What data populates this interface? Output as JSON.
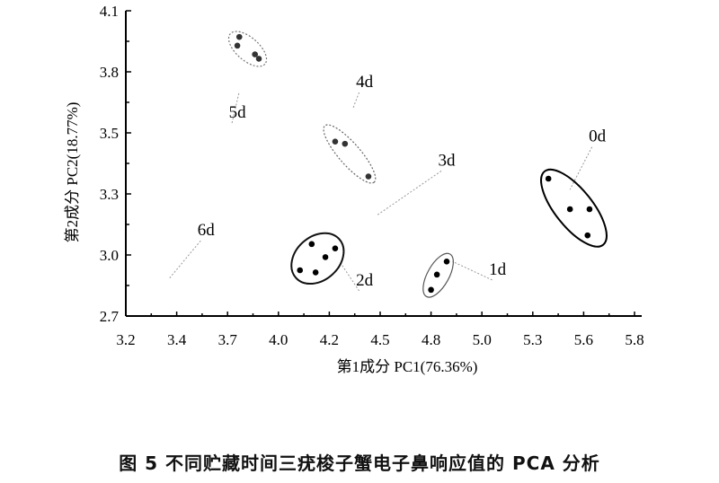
{
  "chart_data": {
    "type": "scatter",
    "xlabel": "第1成分  PC1(76.36%)",
    "ylabel": "第2成分  PC2(18.77%)",
    "xlim": [
      3.2,
      5.8
    ],
    "ylim": [
      2.7,
      4.1
    ],
    "xticks": [
      "3.2",
      "3.4",
      "3.7",
      "4.0",
      "4.2",
      "4.5",
      "4.8",
      "5.0",
      "5.3",
      "5.6",
      "5.8"
    ],
    "yticks": [
      "2.7",
      "3.0",
      "3.3",
      "3.5",
      "3.8",
      "4.1"
    ],
    "grid": false,
    "groups": [
      {
        "name": "0d",
        "color": "#000000",
        "style": "solid",
        "points": [
          [
            5.36,
            3.33
          ],
          [
            5.47,
            3.19
          ],
          [
            5.57,
            3.19
          ],
          [
            5.56,
            3.07
          ]
        ],
        "label_at": [
          5.61,
          3.5
        ],
        "leader_to": [
          5.47,
          3.28
        ]
      },
      {
        "name": "1d",
        "color": "#555555",
        "style": "thin",
        "points": [
          [
            4.84,
            2.95
          ],
          [
            4.79,
            2.89
          ],
          [
            4.76,
            2.82
          ]
        ],
        "label_at": [
          5.1,
          2.89
        ],
        "leader_to": [
          4.87,
          2.95
        ]
      },
      {
        "name": "2d",
        "color": "#111111",
        "style": "solid",
        "points": [
          [
            4.15,
            3.03
          ],
          [
            4.27,
            3.01
          ],
          [
            4.22,
            2.97
          ],
          [
            4.09,
            2.91
          ],
          [
            4.17,
            2.9
          ]
        ],
        "label_at": [
          4.42,
          2.84
        ],
        "leader_to": [
          4.3,
          2.94
        ]
      },
      {
        "name": "3d",
        "color": "#aaaaaa",
        "style": "dotted",
        "points": [],
        "label_at": [
          4.84,
          3.39
        ],
        "leader_to": [
          4.48,
          3.16
        ]
      },
      {
        "name": "4d",
        "color": "#666666",
        "style": "dotted",
        "points": [
          [
            4.27,
            3.5
          ],
          [
            4.32,
            3.49
          ],
          [
            4.44,
            3.34
          ]
        ],
        "label_at": [
          4.42,
          3.75
        ],
        "leader_to": [
          4.36,
          3.65
        ]
      },
      {
        "name": "5d",
        "color": "#777777",
        "style": "dotted",
        "points": [
          [
            3.78,
            3.98
          ],
          [
            3.77,
            3.94
          ],
          [
            3.86,
            3.9
          ],
          [
            3.88,
            3.88
          ]
        ],
        "label_at": [
          3.77,
          3.61
        ],
        "leader_to": [
          3.78,
          3.73
        ]
      },
      {
        "name": "6d",
        "color": "#aaaaaa",
        "style": "dotted",
        "points": [],
        "label_at": [
          3.61,
          3.07
        ],
        "leader_to": [
          3.42,
          2.87
        ]
      }
    ]
  },
  "caption": "图 5    不同贮藏时间三疣梭子蟹电子鼻响应值的 PCA 分析"
}
